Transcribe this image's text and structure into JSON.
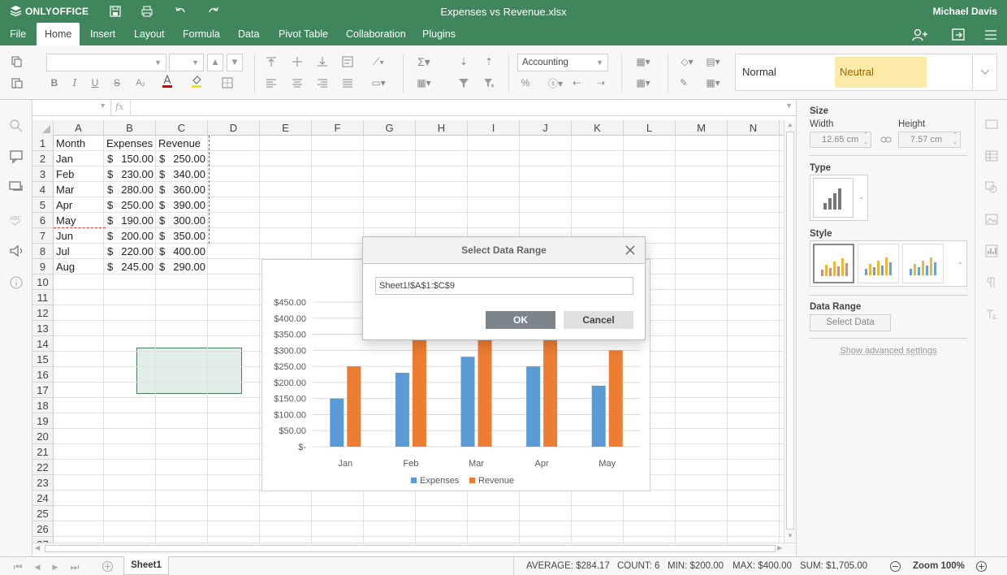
{
  "app": {
    "logo": "ONLYOFFICE",
    "doc_title": "Expenses vs Revenue.xlsx",
    "user_name": "Michael Davis"
  },
  "menu": {
    "tabs": [
      "File",
      "Home",
      "Insert",
      "Layout",
      "Formula",
      "Data",
      "Pivot Table",
      "Collaboration",
      "Plugins"
    ],
    "active": "Home"
  },
  "toolbar": {
    "number_format": "Accounting",
    "style_normal": "Normal",
    "style_neutral": "Neutral"
  },
  "formula_bar": {
    "fx": "fx"
  },
  "columns": [
    "A",
    "B",
    "C",
    "D",
    "E",
    "F",
    "G",
    "H",
    "I",
    "J",
    "K",
    "L",
    "M",
    "N"
  ],
  "rows": [
    "1",
    "2",
    "3",
    "4",
    "5",
    "6",
    "7",
    "8",
    "9",
    "10",
    "11",
    "12",
    "13",
    "14",
    "15",
    "16",
    "17",
    "18",
    "19",
    "20",
    "21",
    "22",
    "23",
    "24",
    "25",
    "26",
    "27"
  ],
  "cells": {
    "header": [
      "Month",
      "Expenses",
      "Revenue"
    ],
    "months": [
      "Jan",
      "Feb",
      "Mar",
      "Apr",
      "May",
      "Jun",
      "Jul",
      "Aug"
    ],
    "currency": "$",
    "expenses": [
      "150.00",
      "230.00",
      "280.00",
      "250.00",
      "190.00",
      "200.00",
      "220.00",
      "245.00"
    ],
    "revenue": [
      "250.00",
      "340.00",
      "360.00",
      "390.00",
      "300.00",
      "350.00",
      "400.00",
      "290.00"
    ]
  },
  "chart_data": {
    "type": "bar",
    "categories": [
      "Jan",
      "Feb",
      "Mar",
      "Apr",
      "May"
    ],
    "series": [
      {
        "name": "Expenses",
        "values": [
          150,
          230,
          280,
          250,
          190
        ],
        "color": "#5b9bd5"
      },
      {
        "name": "Revenue",
        "values": [
          250,
          340,
          360,
          390,
          300
        ],
        "color": "#ed7d31"
      }
    ],
    "yticks": [
      "$-",
      "$50.00",
      "$100.00",
      "$150.00",
      "$200.00",
      "$250.00",
      "$300.00",
      "$350.00",
      "$400.00",
      "$450.00"
    ],
    "ylim": [
      0,
      450
    ],
    "legend": "bottom",
    "grid": true
  },
  "dialog": {
    "title": "Select Data Range",
    "range_value": "Sheet1!$A$1:$C$9",
    "ok": "OK",
    "cancel": "Cancel"
  },
  "right_panel": {
    "size_label": "Size",
    "width_label": "Width",
    "width_value": "12.65 cm",
    "height_label": "Height",
    "height_value": "7.57 cm",
    "type_label": "Type",
    "style_label": "Style",
    "data_range_label": "Data Range",
    "select_data": "Select Data",
    "advanced": "Show advanced settings"
  },
  "status": {
    "sheet_tab": "Sheet1",
    "average": "AVERAGE: $284.17",
    "count": "COUNT: 6",
    "min": "MIN: $200.00",
    "max": "MAX: $400.00",
    "sum": "SUM: $1,705.00",
    "zoom": "Zoom 100%"
  },
  "colors": {
    "brand": "#40865c",
    "selection": "#4a7c5c",
    "neutral_bg": "#fbeaa8"
  }
}
